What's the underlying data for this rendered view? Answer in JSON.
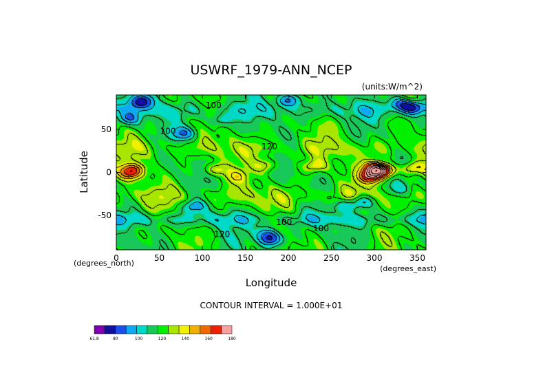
{
  "chart_data": {
    "type": "heatmap",
    "title": "USWRF_1979-ANN_NCEP",
    "units": "(units:W/m^2)",
    "xlabel": "Longitude",
    "ylabel": "Latitude",
    "x_unit_label": "(degrees_east)",
    "y_unit_label": "(degrees_north)",
    "xlim": [
      0,
      360
    ],
    "ylim": [
      -90,
      90
    ],
    "x_ticks": [
      0,
      50,
      100,
      150,
      200,
      250,
      300,
      350
    ],
    "y_ticks": [
      -50,
      0,
      50
    ],
    "contour_interval_text": "CONTOUR INTERVAL = 1.000E+01",
    "contour_labels": [
      {
        "text": "100",
        "lon": 113,
        "lat": 78
      },
      {
        "text": "100",
        "lon": 60,
        "lat": 48
      },
      {
        "text": "120",
        "lon": 178,
        "lat": 30
      },
      {
        "text": "100",
        "lon": 195,
        "lat": -58
      },
      {
        "text": "100",
        "lon": 238,
        "lat": -65
      },
      {
        "text": "120",
        "lon": 123,
        "lat": -72
      }
    ],
    "colorbar": {
      "tick_labels": [
        "61.8",
        "80",
        "100",
        "120",
        "140",
        "160",
        "180"
      ],
      "tick_values": [
        61.8,
        80,
        100,
        120,
        140,
        160,
        180
      ],
      "colors": [
        "#8000b0",
        "#1010a0",
        "#1a50e8",
        "#10a8f0",
        "#00d8c8",
        "#18c858",
        "#00f000",
        "#a8e600",
        "#f0f000",
        "#f0b000",
        "#f06800",
        "#f02000",
        "#f8a0a0"
      ]
    },
    "field_features": [
      {
        "lon": 30,
        "lat": 82,
        "value": 80
      },
      {
        "lon": 200,
        "lat": 84,
        "value": 85
      },
      {
        "lon": 345,
        "lat": 75,
        "value": 80
      },
      {
        "lon": 330,
        "lat": 80,
        "value": 90
      },
      {
        "lon": 15,
        "lat": 62,
        "value": 95
      },
      {
        "lon": 80,
        "lat": 45,
        "value": 92
      },
      {
        "lon": 300,
        "lat": 5,
        "value": 165
      },
      {
        "lon": 310,
        "lat": 1,
        "value": 172
      },
      {
        "lon": 295,
        "lat": -5,
        "value": 160
      },
      {
        "lon": 20,
        "lat": 3,
        "value": 148
      },
      {
        "lon": 15,
        "lat": -2,
        "value": 142
      },
      {
        "lon": 115,
        "lat": 3,
        "value": 140
      },
      {
        "lon": 230,
        "lat": 7,
        "value": 138
      },
      {
        "lon": 175,
        "lat": 8,
        "value": 135
      },
      {
        "lon": 90,
        "lat": -40,
        "value": 95
      },
      {
        "lon": 285,
        "lat": -35,
        "value": 90
      },
      {
        "lon": 265,
        "lat": -40,
        "value": 100
      },
      {
        "lon": 180,
        "lat": -78,
        "value": 80
      },
      {
        "lon": 175,
        "lat": -70,
        "value": 95
      },
      {
        "lon": 345,
        "lat": 5,
        "value": 145
      },
      {
        "lon": 140,
        "lat": -5,
        "value": 132
      },
      {
        "lon": 330,
        "lat": -20,
        "value": 105
      },
      {
        "lon": 120,
        "lat": 60,
        "value": 100
      }
    ]
  }
}
